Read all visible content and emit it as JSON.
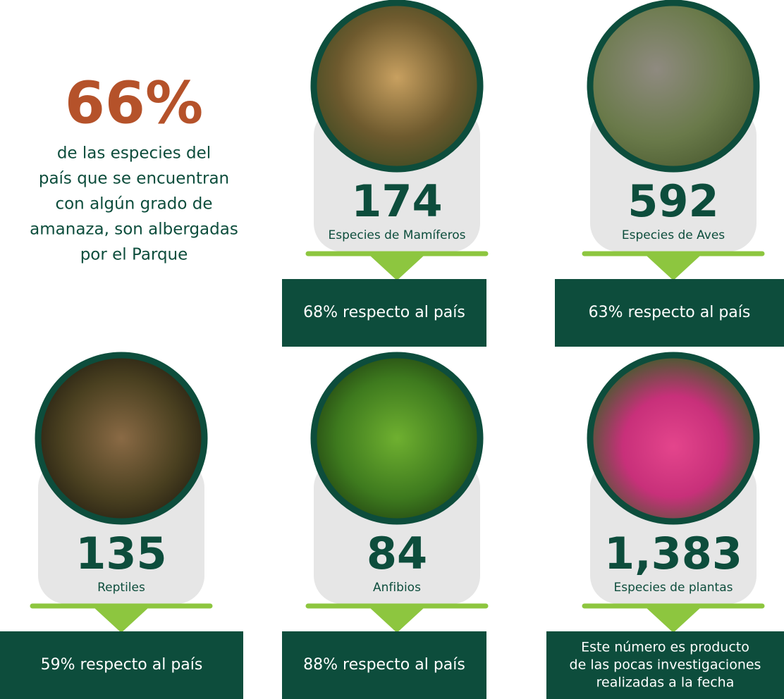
{
  "headline": {
    "value": "66%",
    "lines": [
      "de las especies del",
      "país que se encuentran",
      "con algún grado de",
      "amanaza, son albergadas",
      "por el Parque"
    ]
  },
  "cards": [
    {
      "number": "174",
      "label": "Especies de Mamíferos",
      "note": [
        "68% respecto al país"
      ]
    },
    {
      "number": "592",
      "label": "Especies de Aves",
      "note": [
        "63% respecto al país"
      ]
    },
    {
      "number": "135",
      "label": "Reptiles",
      "note": [
        "59% respecto al país"
      ]
    },
    {
      "number": "84",
      "label": "Anfibios",
      "note": [
        "88% respecto al país"
      ]
    },
    {
      "number": "1,383",
      "label": "Especies de plantas",
      "note": [
        "Este número es producto",
        "de las pocas investigaciones",
        "realizadas a la fecha"
      ]
    }
  ]
}
